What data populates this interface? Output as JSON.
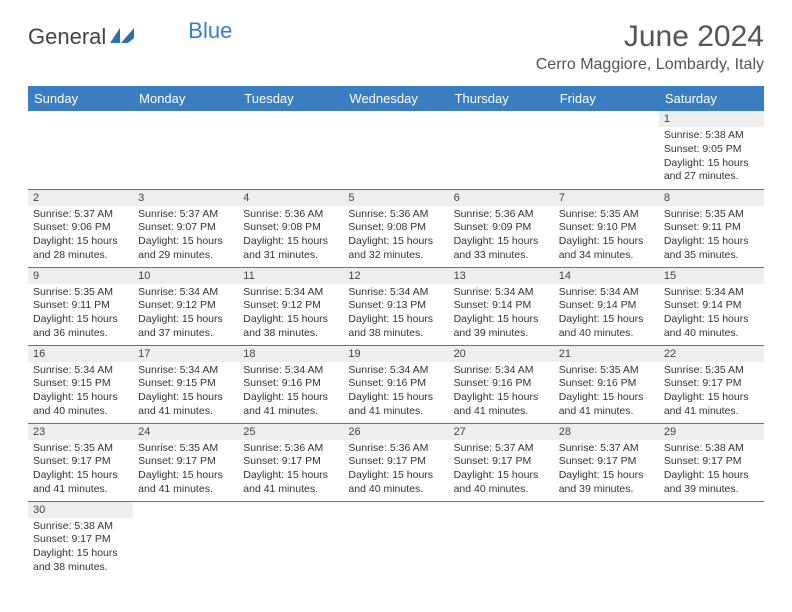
{
  "logo": {
    "text_a": "General",
    "text_b": "Blue"
  },
  "title": "June 2024",
  "location": "Cerro Maggiore, Lombardy, Italy",
  "colors": {
    "header_bg": "#3a7ec1",
    "header_fg": "#ffffff",
    "daynum_bg": "#eeeeee",
    "text": "#333333",
    "row_border": "#3a7ec1",
    "logo_blue": "#3a7ec1"
  },
  "daynames": [
    "Sunday",
    "Monday",
    "Tuesday",
    "Wednesday",
    "Thursday",
    "Friday",
    "Saturday"
  ],
  "first_weekday": 6,
  "days": [
    {
      "n": 1,
      "sunrise": "5:38 AM",
      "sunset": "9:05 PM",
      "daylight": "15 hours and 27 minutes."
    },
    {
      "n": 2,
      "sunrise": "5:37 AM",
      "sunset": "9:06 PM",
      "daylight": "15 hours and 28 minutes."
    },
    {
      "n": 3,
      "sunrise": "5:37 AM",
      "sunset": "9:07 PM",
      "daylight": "15 hours and 29 minutes."
    },
    {
      "n": 4,
      "sunrise": "5:36 AM",
      "sunset": "9:08 PM",
      "daylight": "15 hours and 31 minutes."
    },
    {
      "n": 5,
      "sunrise": "5:36 AM",
      "sunset": "9:08 PM",
      "daylight": "15 hours and 32 minutes."
    },
    {
      "n": 6,
      "sunrise": "5:36 AM",
      "sunset": "9:09 PM",
      "daylight": "15 hours and 33 minutes."
    },
    {
      "n": 7,
      "sunrise": "5:35 AM",
      "sunset": "9:10 PM",
      "daylight": "15 hours and 34 minutes."
    },
    {
      "n": 8,
      "sunrise": "5:35 AM",
      "sunset": "9:11 PM",
      "daylight": "15 hours and 35 minutes."
    },
    {
      "n": 9,
      "sunrise": "5:35 AM",
      "sunset": "9:11 PM",
      "daylight": "15 hours and 36 minutes."
    },
    {
      "n": 10,
      "sunrise": "5:34 AM",
      "sunset": "9:12 PM",
      "daylight": "15 hours and 37 minutes."
    },
    {
      "n": 11,
      "sunrise": "5:34 AM",
      "sunset": "9:12 PM",
      "daylight": "15 hours and 38 minutes."
    },
    {
      "n": 12,
      "sunrise": "5:34 AM",
      "sunset": "9:13 PM",
      "daylight": "15 hours and 38 minutes."
    },
    {
      "n": 13,
      "sunrise": "5:34 AM",
      "sunset": "9:14 PM",
      "daylight": "15 hours and 39 minutes."
    },
    {
      "n": 14,
      "sunrise": "5:34 AM",
      "sunset": "9:14 PM",
      "daylight": "15 hours and 40 minutes."
    },
    {
      "n": 15,
      "sunrise": "5:34 AM",
      "sunset": "9:14 PM",
      "daylight": "15 hours and 40 minutes."
    },
    {
      "n": 16,
      "sunrise": "5:34 AM",
      "sunset": "9:15 PM",
      "daylight": "15 hours and 40 minutes."
    },
    {
      "n": 17,
      "sunrise": "5:34 AM",
      "sunset": "9:15 PM",
      "daylight": "15 hours and 41 minutes."
    },
    {
      "n": 18,
      "sunrise": "5:34 AM",
      "sunset": "9:16 PM",
      "daylight": "15 hours and 41 minutes."
    },
    {
      "n": 19,
      "sunrise": "5:34 AM",
      "sunset": "9:16 PM",
      "daylight": "15 hours and 41 minutes."
    },
    {
      "n": 20,
      "sunrise": "5:34 AM",
      "sunset": "9:16 PM",
      "daylight": "15 hours and 41 minutes."
    },
    {
      "n": 21,
      "sunrise": "5:35 AM",
      "sunset": "9:16 PM",
      "daylight": "15 hours and 41 minutes."
    },
    {
      "n": 22,
      "sunrise": "5:35 AM",
      "sunset": "9:17 PM",
      "daylight": "15 hours and 41 minutes."
    },
    {
      "n": 23,
      "sunrise": "5:35 AM",
      "sunset": "9:17 PM",
      "daylight": "15 hours and 41 minutes."
    },
    {
      "n": 24,
      "sunrise": "5:35 AM",
      "sunset": "9:17 PM",
      "daylight": "15 hours and 41 minutes."
    },
    {
      "n": 25,
      "sunrise": "5:36 AM",
      "sunset": "9:17 PM",
      "daylight": "15 hours and 41 minutes."
    },
    {
      "n": 26,
      "sunrise": "5:36 AM",
      "sunset": "9:17 PM",
      "daylight": "15 hours and 40 minutes."
    },
    {
      "n": 27,
      "sunrise": "5:37 AM",
      "sunset": "9:17 PM",
      "daylight": "15 hours and 40 minutes."
    },
    {
      "n": 28,
      "sunrise": "5:37 AM",
      "sunset": "9:17 PM",
      "daylight": "15 hours and 39 minutes."
    },
    {
      "n": 29,
      "sunrise": "5:38 AM",
      "sunset": "9:17 PM",
      "daylight": "15 hours and 39 minutes."
    },
    {
      "n": 30,
      "sunrise": "5:38 AM",
      "sunset": "9:17 PM",
      "daylight": "15 hours and 38 minutes."
    }
  ],
  "labels": {
    "sunrise": "Sunrise:",
    "sunset": "Sunset:",
    "daylight": "Daylight:"
  }
}
